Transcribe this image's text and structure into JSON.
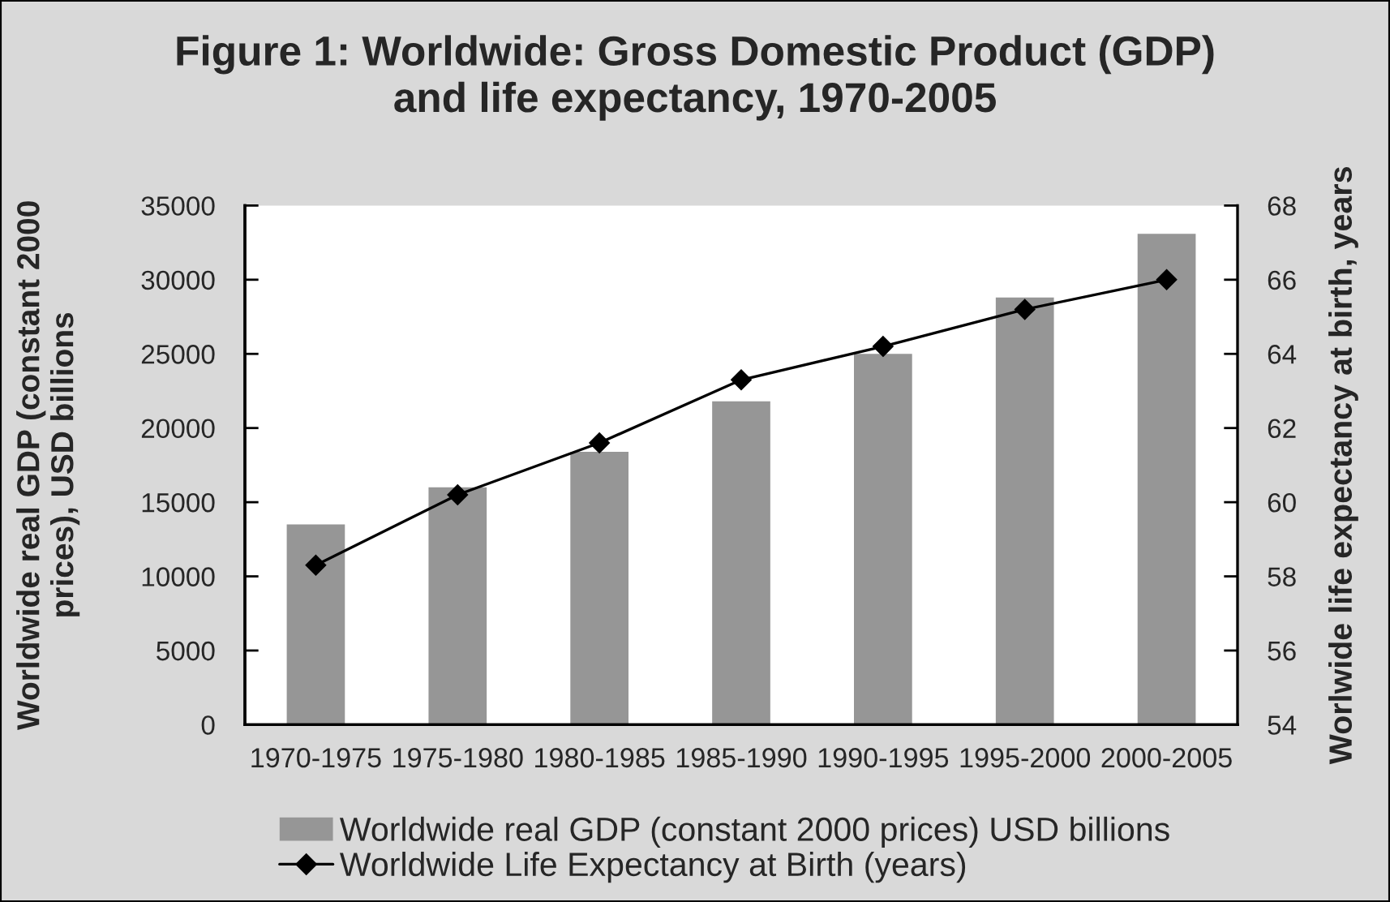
{
  "chart_data": {
    "type": "bar",
    "title": "Figure 1: Worldwide: Gross Domestic Product (GDP)\nand life expectancy, 1970-2005",
    "ylabel": "Worldwide real GDP (constant 2000\nprices), USD billions",
    "y2label": "Worlwide life expectancy at birth, years",
    "categories": [
      "1970-1975",
      "1975-1980",
      "1980-1985",
      "1985-1990",
      "1990-1995",
      "1995-2000",
      "2000-2005"
    ],
    "series": [
      {
        "name": "Worldwide real GDP (constant 2000 prices) USD billions",
        "color": "#969696",
        "values": [
          13500,
          16000,
          18400,
          21800,
          25000,
          28800,
          33100
        ]
      },
      {
        "name": "Worldwide Life Expectancy at Birth (years)",
        "type": "line",
        "axis": "y2",
        "color": "#000000",
        "marker": "diamond",
        "line_style": "solid",
        "values": [
          58.3,
          60.2,
          61.6,
          63.3,
          64.2,
          65.2,
          66.0
        ]
      }
    ],
    "ylim": [
      0,
      35000
    ],
    "yticks": [
      0,
      5000,
      10000,
      15000,
      20000,
      25000,
      30000,
      35000
    ],
    "y2lim": [
      54,
      68
    ],
    "y2ticks": [
      54,
      56,
      58,
      60,
      62,
      64,
      66,
      68
    ],
    "legend": "bottom"
  }
}
